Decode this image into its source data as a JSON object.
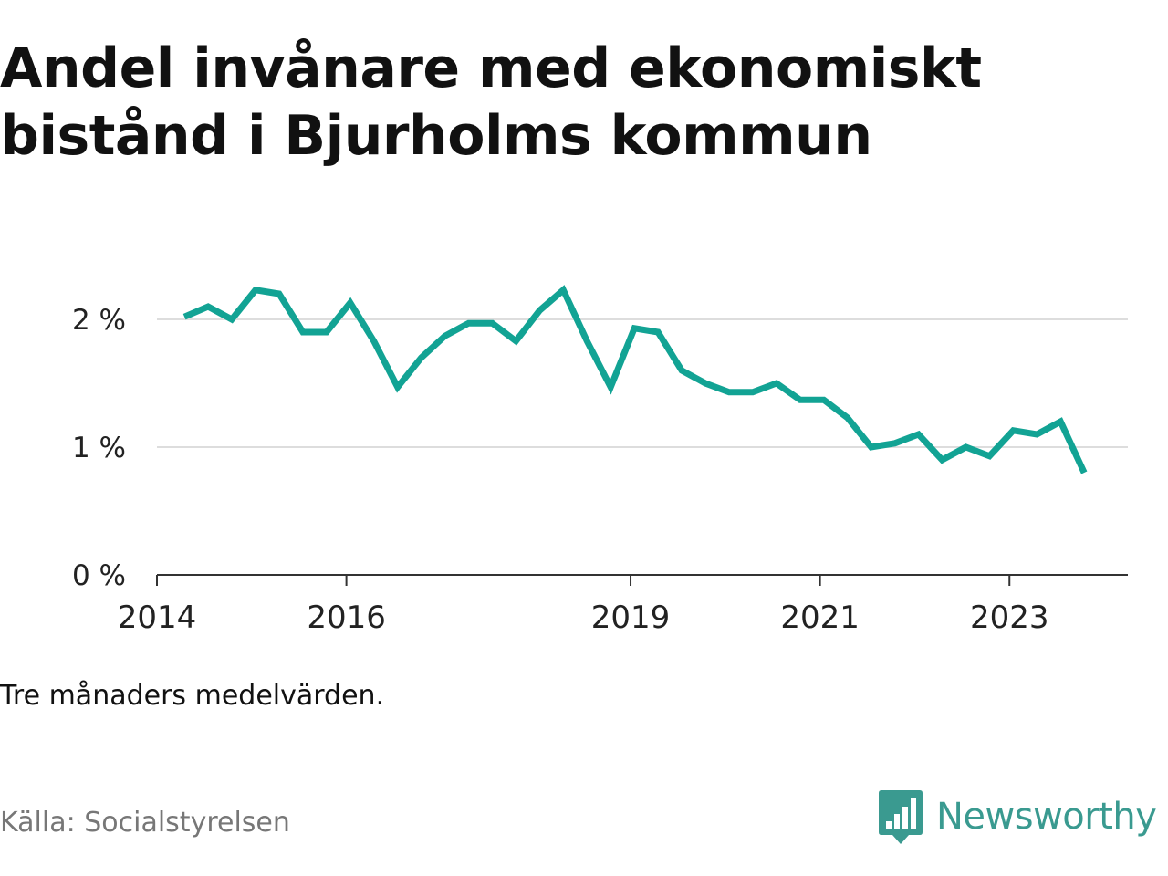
{
  "title_lines": [
    "Andel invånare med ekonomiskt",
    "bistånd i Bjurholms kommun"
  ],
  "note": "Tre månaders medelvärden.",
  "source": "Källa: Socialstyrelsen",
  "brand": "Newsworthy",
  "colors": {
    "line": "#12a394",
    "grid": "#dddddd",
    "axis": "#333333",
    "brand": "#3a9a90"
  },
  "chart_data": {
    "type": "line",
    "x_start": 2014.0,
    "x_end": 2024.25,
    "ylim": [
      0,
      2.5
    ],
    "y_ticks": [
      0,
      1,
      2
    ],
    "y_tick_labels": [
      "0 %",
      "1 %",
      "2 %"
    ],
    "x_ticks": [
      2014,
      2016,
      2019,
      2021,
      2023
    ],
    "x_tick_labels": [
      "2014",
      "2016",
      "2019",
      "2021",
      "2023"
    ],
    "grid": true,
    "series": [
      {
        "x": [
          2014.29,
          2014.54,
          2014.79,
          2015.04,
          2015.29,
          2015.54,
          2015.79,
          2016.04,
          2016.29,
          2016.54,
          2016.79,
          2017.04,
          2017.29,
          2017.54,
          2017.79,
          2018.04,
          2018.29,
          2018.54,
          2018.79,
          2019.04,
          2019.29,
          2019.54,
          2019.79,
          2020.04,
          2020.29,
          2020.54,
          2020.79,
          2021.04,
          2021.29,
          2021.54,
          2021.79,
          2022.04,
          2022.29,
          2022.54,
          2022.79,
          2023.04,
          2023.29,
          2023.54,
          2023.79
        ],
        "y": [
          2.02,
          2.1,
          2.0,
          2.23,
          2.2,
          1.9,
          1.9,
          2.13,
          1.83,
          1.47,
          1.7,
          1.87,
          1.97,
          1.97,
          1.83,
          2.07,
          2.23,
          1.83,
          1.47,
          1.93,
          1.9,
          1.6,
          1.5,
          1.43,
          1.43,
          1.5,
          1.37,
          1.37,
          1.23,
          1.0,
          1.03,
          1.1,
          0.9,
          1.0,
          0.93,
          1.13,
          1.1,
          1.2,
          0.8
        ]
      }
    ]
  }
}
